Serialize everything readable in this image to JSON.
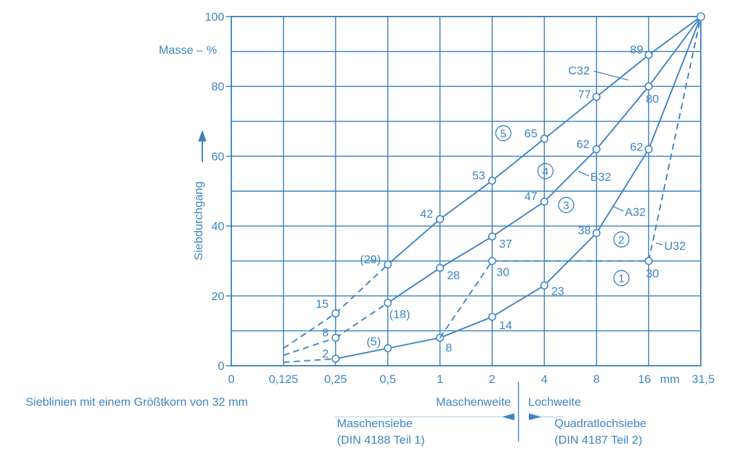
{
  "chart_data": {
    "type": "line",
    "ylabel": "Siebdurchgang",
    "y_unit_label": "Masse – %",
    "ylim": [
      0,
      100
    ],
    "yticks": [
      "0",
      "20",
      "40",
      "60",
      "80",
      "100"
    ],
    "xlabel_unit": "mm",
    "xticks": [
      "0",
      "0,125",
      "0,25",
      "0,5",
      "1",
      "2",
      "4",
      "8",
      "16",
      "31,5"
    ],
    "caption": "Sieblinien mit einem Größtkorn von 32 mm",
    "legend_left_top": "Maschenweite",
    "legend_right_top": "Lochweite",
    "legend_left_bottom_1": "Maschensiebe",
    "legend_left_bottom_2": "(DIN 4188 Teil 1)",
    "legend_right_bottom_1": "Quadratlochsiebe",
    "legend_right_bottom_2": "(DIN 4187 Teil 2)",
    "series": [
      {
        "name": "A32",
        "x": [
          "0,125",
          "0,25",
          "0,5",
          "1",
          "2",
          "4",
          "8",
          "16",
          "31,5"
        ],
        "values": [
          1,
          2,
          5,
          8,
          14,
          23,
          38,
          62,
          100
        ],
        "value_labels": [
          "",
          "2",
          "(5)",
          "8",
          "14",
          "23",
          "38",
          "62",
          ""
        ],
        "dashed_segments": [
          0
        ]
      },
      {
        "name": "B32",
        "x": [
          "0,125",
          "0,25",
          "0,5",
          "1",
          "2",
          "4",
          "8",
          "16",
          "31,5"
        ],
        "values": [
          3,
          8,
          18,
          28,
          37,
          47,
          62,
          80,
          100
        ],
        "value_labels": [
          "",
          "8",
          "(18)",
          "28",
          "37",
          "47",
          "62",
          "80",
          ""
        ],
        "dashed_segments": [
          0,
          1
        ]
      },
      {
        "name": "C32",
        "x": [
          "0,125",
          "0,25",
          "0,5",
          "1",
          "2",
          "4",
          "8",
          "16",
          "31,5"
        ],
        "values": [
          5,
          15,
          29,
          42,
          53,
          65,
          77,
          89,
          100
        ],
        "value_labels": [
          "",
          "15",
          "(29)",
          "42",
          "53",
          "65",
          "77",
          "89",
          ""
        ],
        "dashed_segments": [
          0,
          1
        ]
      },
      {
        "name": "U32",
        "x": [
          "1",
          "2",
          "4",
          "8",
          "16",
          "31,5"
        ],
        "values": [
          8,
          30,
          30,
          30,
          30,
          100
        ],
        "value_labels": [
          "",
          "30",
          "",
          "",
          "30",
          ""
        ],
        "dashed_segments": [
          0,
          1,
          2,
          3,
          4
        ]
      }
    ],
    "region_markers": [
      "1",
      "2",
      "3",
      "4",
      "5"
    ]
  }
}
